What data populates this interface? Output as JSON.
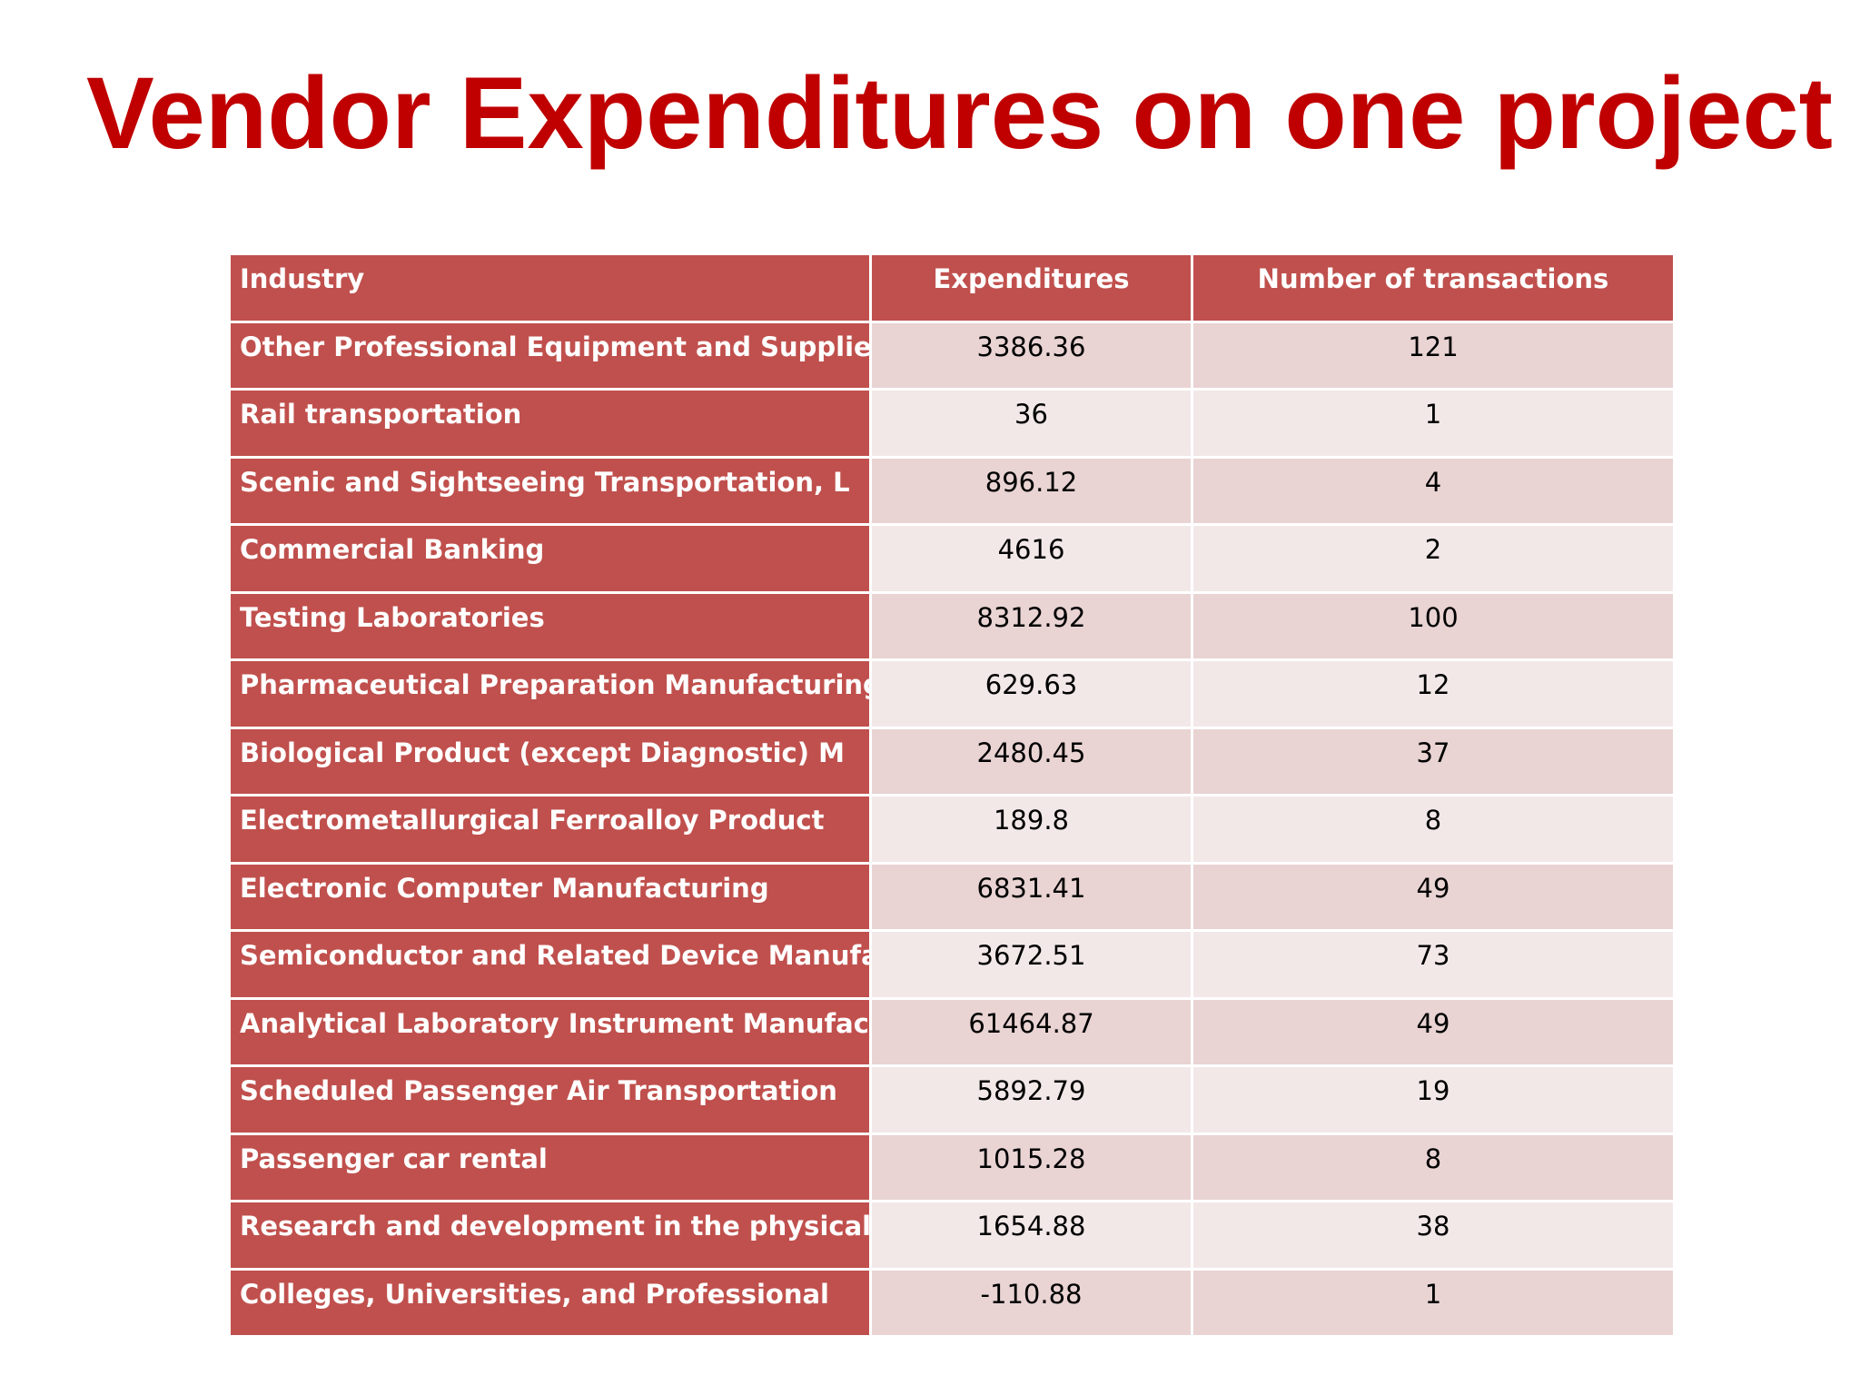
{
  "slide": {
    "title": "Vendor Expenditures on one project"
  },
  "table": {
    "headers": [
      "Industry",
      "Expenditures",
      "Number of transactions"
    ],
    "rows": [
      {
        "industry": "Other Professional Equipment and Supplie",
        "expenditures": "3386.36",
        "transactions": "121"
      },
      {
        "industry": "Rail transportation",
        "expenditures": "36",
        "transactions": "1"
      },
      {
        "industry": "Scenic and Sightseeing Transportation, L",
        "expenditures": "896.12",
        "transactions": "4"
      },
      {
        "industry": "Commercial Banking",
        "expenditures": "4616",
        "transactions": "2"
      },
      {
        "industry": "Testing Laboratories",
        "expenditures": "8312.92",
        "transactions": "100"
      },
      {
        "industry": "Pharmaceutical Preparation Manufacturing",
        "expenditures": "629.63",
        "transactions": "12"
      },
      {
        "industry": "Biological Product (except Diagnostic) M",
        "expenditures": "2480.45",
        "transactions": "37"
      },
      {
        "industry": "Electrometallurgical Ferroalloy Product",
        "expenditures": "189.8",
        "transactions": "8"
      },
      {
        "industry": "Electronic Computer Manufacturing",
        "expenditures": "6831.41",
        "transactions": "49"
      },
      {
        "industry": "Semiconductor and Related Device Manufac",
        "expenditures": "3672.51",
        "transactions": "73"
      },
      {
        "industry": "Analytical Laboratory Instrument Manufac",
        "expenditures": "61464.87",
        "transactions": "49"
      },
      {
        "industry": "Scheduled Passenger Air Transportation",
        "expenditures": "5892.79",
        "transactions": "19"
      },
      {
        "industry": "Passenger car rental",
        "expenditures": "1015.28",
        "transactions": "8"
      },
      {
        "industry": "Research and development in the physical",
        "expenditures": "1654.88",
        "transactions": "38"
      },
      {
        "industry": "Colleges, Universities, and Professional",
        "expenditures": "-110.88",
        "transactions": "1"
      }
    ]
  },
  "colors": {
    "title": "#c00000",
    "header_fill": "#c0504d",
    "band_odd": "#e9d3d3",
    "band_even": "#f3e8e8"
  }
}
